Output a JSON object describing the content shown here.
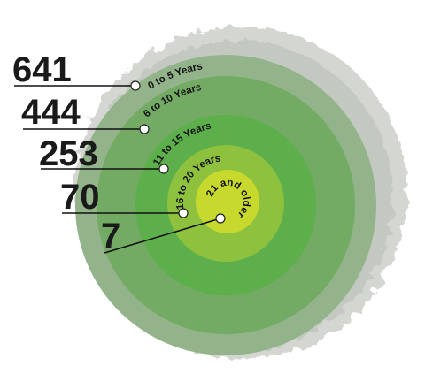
{
  "rings": [
    {
      "count": "641",
      "label": "0 to 5 Years"
    },
    {
      "count": "444",
      "label": "6 to 10 Years"
    },
    {
      "count": "253",
      "label": "11 to 15 Years"
    },
    {
      "count": "70",
      "label": "16 to 20 Years"
    },
    {
      "count": "7",
      "label": "21 and older years"
    }
  ]
}
